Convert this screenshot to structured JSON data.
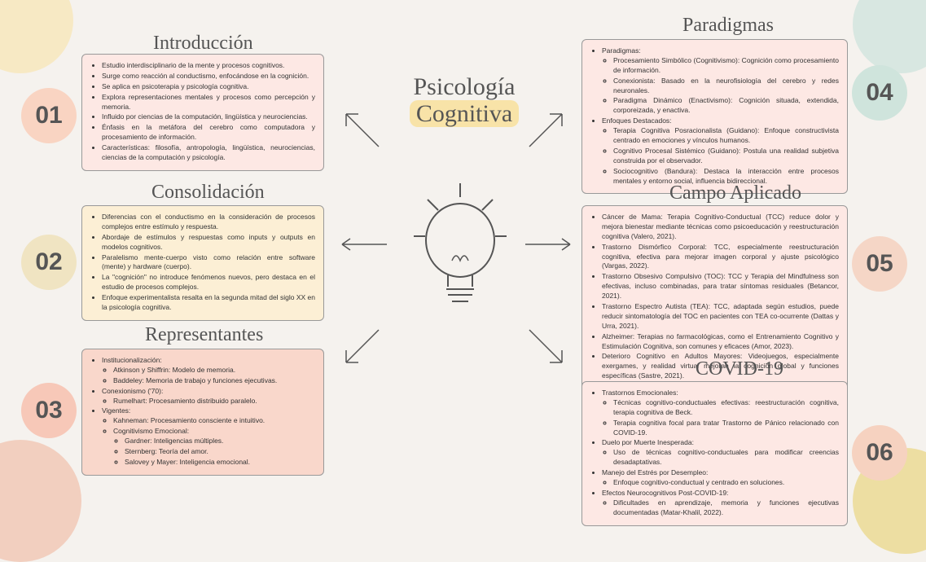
{
  "center": {
    "line1": "Psicología",
    "line2": "Cognitiva"
  },
  "sections": {
    "s1": {
      "heading": "Introducción",
      "num": "01",
      "items": [
        "Estudio interdisciplinario de la mente y procesos cognitivos.",
        "Surge como reacción al conductismo, enfocándose en la cognición.",
        "Se aplica en psicoterapia y psicología cognitiva.",
        "Explora representaciones mentales y procesos como percepción y memoria.",
        "Influido por ciencias de la computación, lingüística y neurociencias.",
        "Énfasis en la metáfora del cerebro como computadora y procesamiento de información.",
        "Características: filosofía, antropología, lingüística, neurociencias, ciencias de la computación y psicología."
      ]
    },
    "s2": {
      "heading": "Consolidación",
      "num": "02",
      "items": [
        "Diferencias con el conductismo en la consideración de procesos complejos entre estímulo y respuesta.",
        "Abordaje de estímulos y respuestas como inputs y outputs en modelos cognitivos.",
        "Paralelismo mente-cuerpo visto como relación entre software (mente) y hardware (cuerpo).",
        "La \"cognición\" no introduce fenómenos nuevos, pero destaca en el estudio de procesos complejos.",
        "Enfoque experimentalista resalta en la segunda mitad del siglo XX en la psicología cognitiva."
      ]
    },
    "s3": {
      "heading": "Representantes",
      "num": "03",
      "groups": [
        {
          "label": "Institucionalización:",
          "items": [
            "Atkinson y Shiffrin: Modelo de memoria.",
            "Baddeley: Memoria de trabajo y funciones ejecutivas."
          ]
        },
        {
          "label": "Conexionismo ('70):",
          "items": [
            "Rumelhart: Procesamiento distribuido paralelo."
          ]
        },
        {
          "label": "Vigentes:",
          "items": [
            "Kahneman: Procesamiento consciente e intuitivo.",
            "Cognitivismo Emocional:"
          ]
        },
        {
          "label": "",
          "sub": [
            "Gardner: Inteligencias múltiples.",
            "Sternberg: Teoría del amor.",
            "Salovey y Mayer: Inteligencia emocional."
          ]
        }
      ]
    },
    "s4": {
      "heading": "Paradigmas",
      "num": "04",
      "groups": [
        {
          "label": "Paradigmas:",
          "items": [
            "Procesamiento Simbólico (Cognitivismo): Cognición como procesamiento de información.",
            "Conexionista: Basado en la neurofisiología del cerebro y redes neuronales.",
            "Paradigma Dinámico (Enactivismo): Cognición situada, extendida, corporeizada, y enactiva."
          ]
        },
        {
          "label": "Enfoques Destacados:",
          "items": [
            "Terapia Cognitiva Posracionalista (Guidano): Enfoque constructivista centrado en emociones y vínculos humanos.",
            "Cognitivo Procesal Sistémico (Guidano): Postula una realidad subjetiva construida por el observador.",
            "Sociocognitivo (Bandura): Destaca la interacción entre procesos mentales y entorno social, influencia bidireccional."
          ]
        }
      ]
    },
    "s5": {
      "heading": "Campo Aplicado",
      "num": "05",
      "items": [
        "Cáncer de Mama: Terapia Cognitivo-Conductual (TCC) reduce dolor y mejora bienestar mediante técnicas como psicoeducación y reestructuración cognitiva (Valero, 2021).",
        "Trastorno Dismórfico Corporal: TCC, especialmente reestructuración cognitiva, efectiva para mejorar imagen corporal y ajuste psicológico (Vargas, 2022).",
        "Trastorno Obsesivo Compulsivo (TOC): TCC y Terapia del Mindfulness son efectivas, incluso combinadas, para tratar síntomas residuales (Betancor, 2021).",
        "Trastorno Espectro Autista (TEA): TCC, adaptada según estudios, puede reducir sintomatología del TOC en pacientes con TEA co-ocurrente (Dattas y Urra, 2021).",
        "Alzheimer: Terapias no farmacológicas, como el Entrenamiento Cognitivo y Estimulación Cognitiva, son comunes y eficaces (Amor, 2023).",
        "Deterioro Cognitivo en Adultos Mayores: Videojuegos, especialmente exergames, y realidad virtual mejoran la cognición global y funciones específicas (Sastre, 2021)."
      ]
    },
    "s6": {
      "heading": "COVID-19",
      "num": "06",
      "groups": [
        {
          "label": "Trastornos Emocionales:",
          "items": [
            "Técnicas cognitivo-conductuales efectivas: reestructuración cognitiva, terapia cognitiva de Beck.",
            "Terapia cognitiva focal para tratar Trastorno de Pánico relacionado con COVID-19."
          ]
        },
        {
          "label": "Duelo por Muerte Inesperada:",
          "items": [
            "Uso de técnicas cognitivo-conductuales para modificar creencias desadaptativas."
          ]
        },
        {
          "label": "Manejo del Estrés por Desempleo:",
          "items": [
            "Enfoque cognitivo-conductual y centrado en soluciones."
          ]
        },
        {
          "label": "Efectos Neurocognitivos Post-COVID-19:",
          "items": [
            "Dificultades en aprendizaje, memoria y funciones ejecutivas documentadas (Matar-Khalil, 2022)."
          ]
        }
      ]
    }
  },
  "colors": {
    "c1": "#fde8e4",
    "c2": "#fcefd5",
    "c3": "#f9d7cb",
    "c4": "#fde8e4",
    "c5": "#fde8e4",
    "c6": "#fde8e4",
    "n1": "#f9d4c2",
    "n2": "#f0e4c2",
    "n3": "#f7c8b8",
    "n4": "#cfe4dc",
    "n5": "#f5d6c6",
    "n6": "#f6d2c0"
  }
}
